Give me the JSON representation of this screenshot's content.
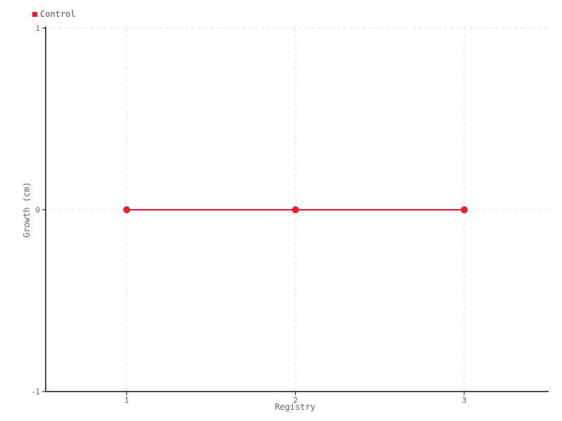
{
  "legend": {
    "items": [
      {
        "label": "Control",
        "color": "#ed1c2d"
      }
    ]
  },
  "chart_data": {
    "type": "line",
    "title": "",
    "xlabel": "Registry",
    "ylabel": "Growth (cm)",
    "x": [
      1,
      2,
      3
    ],
    "series": [
      {
        "name": "Control",
        "color": "#ed1c2d",
        "values": [
          0,
          0,
          0
        ]
      }
    ],
    "xlim": [
      0.52,
      3.5
    ],
    "ylim": [
      -1,
      1
    ],
    "xticks": [
      1,
      2,
      3
    ],
    "xtick_labels": [
      "1",
      "2",
      "3"
    ],
    "yticks": [
      -1,
      0,
      1
    ],
    "ytick_labels": [
      "-1",
      "0",
      "1"
    ],
    "grid": true,
    "grid_style": "dashed",
    "legend_position": "top-left",
    "marker": "circle"
  },
  "colors": {
    "axis": "#111111",
    "grid": "#e0e0e0",
    "tick_text": "#666666",
    "label_text": "#666666",
    "background": "#ffffff"
  }
}
